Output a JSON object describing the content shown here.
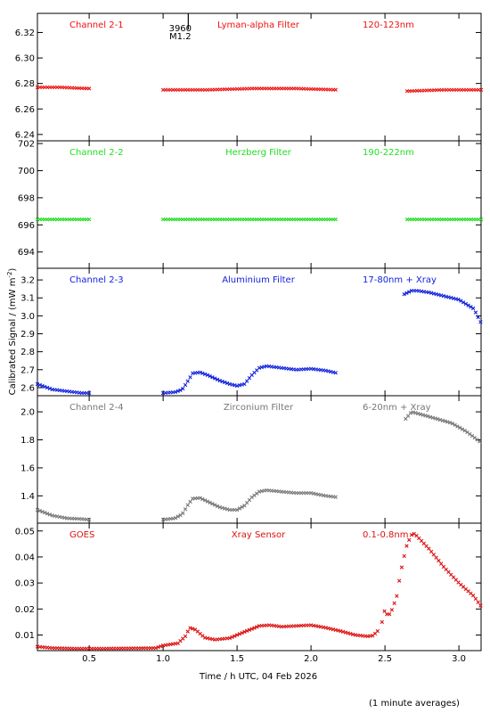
{
  "figure": {
    "xlabel": "Time / h UTC, 04 Feb 2026",
    "ylabel": "Calibrated Signal / (mW m",
    "ylabel_sup": "-2",
    "ylabel_end": ")",
    "footnote": "(1 minute averages)",
    "event_label_top": "3960",
    "event_label_bottom": "M1.2",
    "event_time": 1.17
  },
  "chart_data": [
    {
      "type": "scatter",
      "channel": "Channel 2-1",
      "filter": "Lyman-alpha Filter",
      "band": "120-123nm",
      "color": "#ee1111",
      "xlim": [
        0.15,
        3.15
      ],
      "ylim": [
        6.235,
        6.335
      ],
      "yticks": [
        6.24,
        6.26,
        6.28,
        6.3,
        6.32
      ],
      "ytick_labels": [
        "6.24",
        "6.26",
        "6.28",
        "6.30",
        "6.32"
      ],
      "xticks": [
        0.5,
        1.0,
        1.5,
        2.0,
        2.5,
        3.0
      ],
      "segments": [
        {
          "x": [
            0.15,
            0.3,
            0.5
          ],
          "y": [
            6.277,
            6.277,
            6.276
          ]
        },
        {
          "x": [
            1.0,
            1.3,
            1.6,
            1.9,
            2.18
          ],
          "y": [
            6.275,
            6.275,
            6.276,
            6.276,
            6.275
          ]
        },
        {
          "x": [
            2.65,
            2.9,
            3.15
          ],
          "y": [
            6.274,
            6.275,
            6.275
          ]
        }
      ]
    },
    {
      "type": "scatter",
      "channel": "Channel 2-2",
      "filter": "Herzberg Filter",
      "band": "190-222nm",
      "color": "#22dd22",
      "xlim": [
        0.15,
        3.15
      ],
      "ylim": [
        692.8,
        702.2
      ],
      "yticks": [
        694,
        696,
        698,
        700,
        702
      ],
      "ytick_labels": [
        "694",
        "696",
        "698",
        "700",
        "702"
      ],
      "xticks": [
        0.5,
        1.0,
        1.5,
        2.0,
        2.5,
        3.0
      ],
      "segments": [
        {
          "x": [
            0.15,
            0.5
          ],
          "y": [
            696.4,
            696.4
          ]
        },
        {
          "x": [
            1.0,
            1.6,
            2.18
          ],
          "y": [
            696.4,
            696.4,
            696.4
          ]
        },
        {
          "x": [
            2.65,
            3.15
          ],
          "y": [
            696.4,
            696.4
          ]
        }
      ]
    },
    {
      "type": "scatter",
      "channel": "Channel 2-3",
      "filter": "Aluminium Filter",
      "band": "17-80nm + Xray",
      "color": "#1122dd",
      "xlim": [
        0.15,
        3.15
      ],
      "ylim": [
        2.555,
        3.265
      ],
      "yticks": [
        2.6,
        2.7,
        2.8,
        2.9,
        3.0,
        3.1,
        3.2
      ],
      "ytick_labels": [
        "2.6",
        "2.7",
        "2.8",
        "2.9",
        "3.0",
        "3.1",
        "3.2"
      ],
      "xticks": [
        0.5,
        1.0,
        1.5,
        2.0,
        2.5,
        3.0
      ],
      "segments": [
        {
          "x": [
            0.15,
            0.25,
            0.35,
            0.45,
            0.5
          ],
          "y": [
            2.62,
            2.59,
            2.58,
            2.57,
            2.57
          ]
        },
        {
          "x": [
            1.0,
            1.08,
            1.13,
            1.17,
            1.2,
            1.25,
            1.3,
            1.38,
            1.45,
            1.5,
            1.55,
            1.6,
            1.65,
            1.7,
            1.8,
            1.9,
            2.0,
            2.1,
            2.18
          ],
          "y": [
            2.57,
            2.575,
            2.59,
            2.64,
            2.68,
            2.685,
            2.67,
            2.64,
            2.62,
            2.61,
            2.62,
            2.67,
            2.71,
            2.72,
            2.71,
            2.7,
            2.705,
            2.695,
            2.68
          ]
        },
        {
          "x": [
            2.63,
            2.68,
            2.72,
            2.8,
            2.9,
            3.0,
            3.1,
            3.15
          ],
          "y": [
            3.12,
            3.14,
            3.14,
            3.13,
            3.11,
            3.09,
            3.04,
            2.96
          ]
        }
      ]
    },
    {
      "type": "scatter",
      "channel": "Channel 2-4",
      "filter": "Zirconium Filter",
      "band": "6-20nm + Xray",
      "color": "#777777",
      "xlim": [
        0.15,
        3.15
      ],
      "ylim": [
        1.205,
        2.115
      ],
      "yticks": [
        1.4,
        1.6,
        1.8,
        2.0
      ],
      "ytick_labels": [
        "1.4",
        "1.6",
        "1.8",
        "2.0"
      ],
      "xticks": [
        0.5,
        1.0,
        1.5,
        2.0,
        2.5,
        3.0
      ],
      "segments": [
        {
          "x": [
            0.15,
            0.25,
            0.35,
            0.45,
            0.5
          ],
          "y": [
            1.3,
            1.26,
            1.24,
            1.235,
            1.23
          ]
        },
        {
          "x": [
            1.0,
            1.08,
            1.13,
            1.17,
            1.2,
            1.25,
            1.3,
            1.38,
            1.45,
            1.5,
            1.55,
            1.6,
            1.65,
            1.7,
            1.8,
            1.9,
            2.0,
            2.1,
            2.18
          ],
          "y": [
            1.23,
            1.24,
            1.27,
            1.34,
            1.38,
            1.385,
            1.36,
            1.32,
            1.3,
            1.3,
            1.33,
            1.39,
            1.43,
            1.44,
            1.43,
            1.42,
            1.42,
            1.4,
            1.39
          ]
        },
        {
          "x": [
            2.64,
            2.68,
            2.75,
            2.85,
            2.95,
            3.05,
            3.15
          ],
          "y": [
            1.95,
            2.0,
            1.98,
            1.95,
            1.92,
            1.86,
            1.78
          ]
        }
      ]
    },
    {
      "type": "scatter",
      "channel": "GOES",
      "filter": "Xray Sensor",
      "band": "0.1-0.8nm",
      "color": "#dd1111",
      "xlim": [
        0.15,
        3.15
      ],
      "ylim": [
        0.004,
        0.053
      ],
      "yticks": [
        0.01,
        0.02,
        0.03,
        0.04,
        0.05
      ],
      "ytick_labels": [
        "0.01",
        "0.02",
        "0.03",
        "0.04",
        "0.05"
      ],
      "xticks": [
        0.5,
        1.0,
        1.5,
        2.0,
        2.5,
        3.0
      ],
      "xtick_labels": [
        "0.5",
        "1.0",
        "1.5",
        "2.0",
        "2.5",
        "3.0"
      ],
      "segments": [
        {
          "x": [
            0.15,
            0.25,
            0.4,
            0.6,
            0.8,
            0.95,
            1.0,
            1.1,
            1.15,
            1.18,
            1.22,
            1.28,
            1.35,
            1.45,
            1.55,
            1.65,
            1.72,
            1.8,
            1.9,
            2.0,
            2.1,
            2.2,
            2.3,
            2.38,
            2.42,
            2.45
          ],
          "y": [
            0.0055,
            0.005,
            0.0048,
            0.0048,
            0.0049,
            0.005,
            0.006,
            0.0068,
            0.0095,
            0.0128,
            0.012,
            0.009,
            0.0082,
            0.0088,
            0.0112,
            0.0135,
            0.0138,
            0.0132,
            0.0135,
            0.0138,
            0.0128,
            0.0115,
            0.01,
            0.0095,
            0.0098,
            0.0115
          ]
        },
        {
          "x": [
            2.48,
            2.5,
            2.52,
            2.55,
            2.58,
            2.6,
            2.62,
            2.65,
            2.68,
            2.7,
            2.8,
            2.9,
            3.0,
            3.1,
            3.15
          ],
          "y": [
            0.015,
            0.02,
            0.017,
            0.02,
            0.025,
            0.032,
            0.038,
            0.045,
            0.0485,
            0.049,
            0.043,
            0.036,
            0.03,
            0.025,
            0.021
          ]
        }
      ]
    }
  ]
}
